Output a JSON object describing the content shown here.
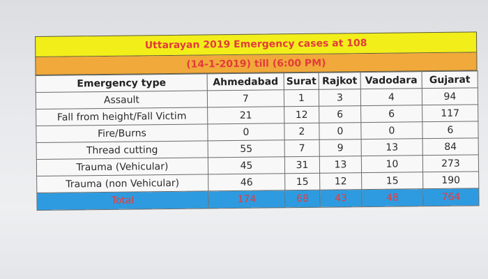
{
  "table": {
    "title": "Uttarayan 2019 Emergency cases at 108",
    "subtitle": "(14-1-2019) till (6:00 PM)",
    "headers": [
      "Emergency type",
      "Ahmedabad",
      "Surat",
      "Rajkot",
      "Vadodara",
      "Gujarat"
    ],
    "rows": [
      [
        "Assault",
        "7",
        "1",
        "3",
        "4",
        "94"
      ],
      [
        "Fall from height/Fall Victim",
        "21",
        "12",
        "6",
        "6",
        "117"
      ],
      [
        "Fire/Burns",
        "0",
        "2",
        "0",
        "0",
        "6"
      ],
      [
        "Thread cutting",
        "55",
        "7",
        "9",
        "13",
        "84"
      ],
      [
        "Trauma (Vehicular)",
        "45",
        "31",
        "13",
        "10",
        "273"
      ],
      [
        "Trauma (non Vehicular)",
        "46",
        "15",
        "12",
        "15",
        "190"
      ]
    ],
    "total": [
      "Total",
      "174",
      "68",
      "43",
      "48",
      "764"
    ]
  },
  "colors": {
    "title_bg": "#f2ee1a",
    "subtitle_bg": "#f0a93a",
    "title_text": "#e23b3b",
    "total_bg": "#2e9be0",
    "total_text": "#e43c3c"
  }
}
